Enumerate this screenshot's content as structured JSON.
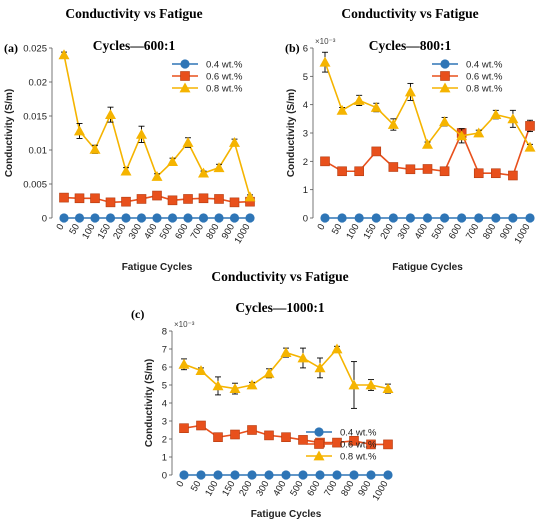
{
  "x_tick_labels": [
    "0",
    "50",
    "100",
    "150",
    "200",
    "300",
    "400",
    "500",
    "600",
    "700",
    "800",
    "900",
    "1000"
  ],
  "colors": {
    "0.4 wt.%": "#2e75b6",
    "0.6 wt.%": "#e8501c",
    "0.8 wt.%": "#f5b400"
  },
  "chart_data": [
    {
      "panel": "(a)",
      "type": "line",
      "title": [
        "Conductivity vs Fatigue",
        "Cycles—600:1"
      ],
      "xlabel": "Fatigue Cycles",
      "ylabel": "Conductivity (S/m)",
      "exponent": "",
      "ylim": [
        0,
        0.025
      ],
      "yticks": [
        "0",
        "0.005",
        "0.01",
        "0.015",
        "0.02",
        "0.025"
      ],
      "legend_position": "top-right",
      "x": [
        0,
        50,
        100,
        150,
        200,
        300,
        400,
        500,
        600,
        700,
        800,
        900,
        1000
      ],
      "series": [
        {
          "name": "0.4 wt.%",
          "marker": "circle",
          "values": [
            0,
            0,
            0,
            0,
            0,
            0,
            0,
            0,
            0,
            0,
            0,
            0,
            0
          ],
          "errors": [
            0,
            0,
            0,
            0,
            0,
            0,
            0,
            0,
            0,
            0,
            0,
            0,
            0
          ]
        },
        {
          "name": "0.6 wt.%",
          "marker": "square",
          "values": [
            0.003,
            0.0029,
            0.0029,
            0.0023,
            0.0024,
            0.0028,
            0.0033,
            0.0026,
            0.0028,
            0.0029,
            0.0028,
            0.0023,
            0.0024
          ],
          "errors": [
            0.0003,
            0.0003,
            0.0003,
            0.0002,
            0.0002,
            0.0003,
            0.0003,
            0.0003,
            0.0002,
            0.0002,
            0.0002,
            0.0002,
            0.0002
          ]
        },
        {
          "name": "0.8 wt.%",
          "marker": "triangle",
          "values": [
            0.024,
            0.0128,
            0.0101,
            0.0152,
            0.0069,
            0.0123,
            0.0061,
            0.0083,
            0.0111,
            0.0066,
            0.0074,
            0.0111,
            0.0031
          ],
          "errors": [
            0.0004,
            0.0011,
            0.0006,
            0.0011,
            0.0005,
            0.0012,
            0.0004,
            0.0005,
            0.0007,
            0.0003,
            0.0005,
            0.0005,
            0.0003
          ]
        }
      ]
    },
    {
      "panel": "(b)",
      "type": "line",
      "title": [
        "Conductivity vs Fatigue",
        "Cycles—800:1"
      ],
      "xlabel": "Fatigue Cycles",
      "ylabel": "Conductivity (S/m)",
      "exponent": "×10⁻³",
      "ylim": [
        0,
        6
      ],
      "yticks": [
        "0",
        "1",
        "2",
        "3",
        "4",
        "5",
        "6"
      ],
      "legend_position": "top-right",
      "x": [
        0,
        50,
        100,
        150,
        200,
        300,
        400,
        500,
        600,
        700,
        800,
        900,
        1000
      ],
      "series": [
        {
          "name": "0.4 wt.%",
          "marker": "circle",
          "values": [
            0,
            0,
            0,
            0,
            0,
            0,
            0,
            0,
            0,
            0,
            0,
            0,
            0
          ],
          "errors": [
            0,
            0,
            0,
            0,
            0,
            0,
            0,
            0,
            0,
            0,
            0,
            0,
            0
          ]
        },
        {
          "name": "0.6 wt.%",
          "marker": "square",
          "values": [
            2.0,
            1.65,
            1.65,
            2.35,
            1.8,
            1.72,
            1.73,
            1.65,
            3.0,
            1.58,
            1.58,
            1.5,
            3.25
          ],
          "errors": [
            0.1,
            0.08,
            0.08,
            0.1,
            0.08,
            0.08,
            0.08,
            0.08,
            0.15,
            0.08,
            0.08,
            0.08,
            0.2
          ]
        },
        {
          "name": "0.8 wt.%",
          "marker": "triangle",
          "values": [
            5.5,
            3.8,
            4.15,
            3.9,
            3.3,
            4.45,
            2.6,
            3.4,
            2.9,
            3.0,
            3.65,
            3.5,
            2.5
          ],
          "errors": [
            0.35,
            0.1,
            0.18,
            0.15,
            0.2,
            0.3,
            0.08,
            0.15,
            0.25,
            0.1,
            0.15,
            0.3,
            0.1
          ]
        }
      ]
    },
    {
      "panel": "(c)",
      "type": "line",
      "title": [
        "Conductivity vs Fatigue",
        "Cycles—1000:1"
      ],
      "xlabel": "Fatigue Cycles",
      "ylabel": "Conductivity (S/m)",
      "exponent": "×10⁻³",
      "ylim": [
        0,
        8
      ],
      "yticks": [
        "0",
        "1",
        "2",
        "3",
        "4",
        "5",
        "6",
        "7",
        "8"
      ],
      "legend_position": "center-right",
      "x": [
        0,
        50,
        100,
        150,
        200,
        300,
        400,
        500,
        600,
        700,
        800,
        900,
        1000
      ],
      "series": [
        {
          "name": "0.4 wt.%",
          "marker": "circle",
          "values": [
            0,
            0,
            0,
            0,
            0,
            0,
            0,
            0,
            0,
            0,
            0,
            0,
            0
          ],
          "errors": [
            0,
            0,
            0,
            0,
            0,
            0,
            0,
            0,
            0,
            0,
            0,
            0,
            0
          ]
        },
        {
          "name": "0.6 wt.%",
          "marker": "square",
          "values": [
            2.6,
            2.75,
            2.1,
            2.25,
            2.5,
            2.2,
            2.1,
            1.95,
            1.8,
            1.8,
            1.9,
            1.7,
            1.7
          ],
          "errors": [
            0.1,
            0.1,
            0.1,
            0.1,
            0.1,
            0.08,
            0.08,
            0.08,
            0.08,
            0.08,
            0.08,
            0.08,
            0.08
          ]
        },
        {
          "name": "0.8 wt.%",
          "marker": "triangle",
          "values": [
            6.15,
            5.8,
            4.95,
            4.8,
            5.0,
            5.65,
            6.8,
            6.5,
            5.95,
            7.0,
            5.0,
            5.0,
            4.8
          ],
          "errors": [
            0.3,
            0.15,
            0.5,
            0.3,
            0.15,
            0.25,
            0.25,
            0.55,
            0.55,
            0.15,
            1.3,
            0.3,
            0.25
          ]
        }
      ]
    }
  ]
}
